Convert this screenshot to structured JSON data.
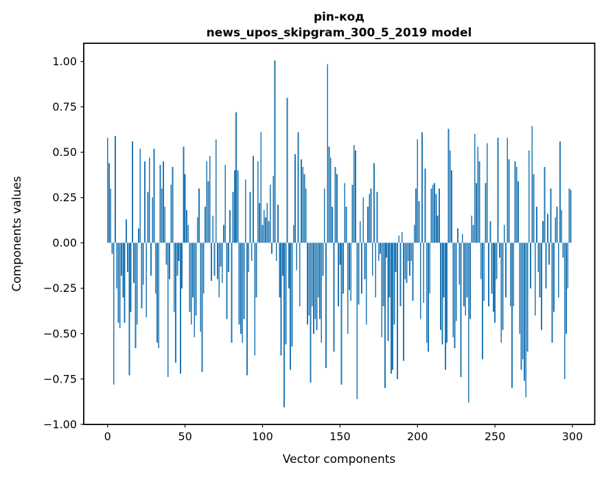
{
  "chart_data": {
    "type": "bar",
    "title": "pin-код",
    "subtitle": "news_upos_skipgram_300_5_2019 model",
    "xlabel": "Vector components",
    "ylabel": "Components values",
    "bar_color": "#1f77b4",
    "n_components": 300,
    "bar_width_units": 0.8,
    "xlim": [
      -15.4,
      314.4
    ],
    "ylim": [
      -1.0005,
      1.1005
    ],
    "grid": false,
    "legend": "none",
    "x_ticks": [
      0,
      50,
      100,
      150,
      200,
      250,
      300
    ],
    "x_tick_labels": [
      "0",
      "50",
      "100",
      "150",
      "200",
      "250",
      "300"
    ],
    "y_ticks": [
      1.0,
      0.75,
      0.5,
      0.25,
      0.0,
      -0.25,
      -0.5,
      -0.75,
      -1.0
    ],
    "y_tick_labels": [
      "1.00",
      "0.75",
      "0.50",
      "0.25",
      "0.00",
      "−0.25",
      "−0.50",
      "−0.75",
      "−1.00"
    ],
    "values": [
      0.58,
      0.44,
      0.3,
      -0.06,
      -0.78,
      0.59,
      -0.25,
      -0.44,
      -0.47,
      -0.18,
      -0.3,
      -0.44,
      0.13,
      -0.16,
      -0.73,
      -0.38,
      0.56,
      -0.22,
      -0.58,
      -0.45,
      0.08,
      0.52,
      -0.36,
      -0.23,
      0.45,
      -0.41,
      0.28,
      0.47,
      -0.18,
      0.25,
      0.52,
      -0.28,
      -0.55,
      -0.58,
      0.43,
      0.3,
      0.45,
      0.2,
      -0.12,
      -0.74,
      -0.2,
      0.32,
      0.42,
      -0.38,
      -0.66,
      -0.18,
      -0.1,
      -0.72,
      -0.25,
      0.53,
      0.38,
      0.18,
      0.1,
      -0.38,
      -0.45,
      -0.3,
      -0.52,
      -0.4,
      0.14,
      0.3,
      -0.49,
      -0.71,
      -0.28,
      0.2,
      0.45,
      0.34,
      0.48,
      -0.21,
      0.15,
      -0.18,
      0.57,
      -0.2,
      -0.3,
      -0.13,
      -0.22,
      0.1,
      0.43,
      -0.42,
      -0.16,
      0.18,
      -0.55,
      0.28,
      0.4,
      0.72,
      0.4,
      -0.45,
      -0.5,
      -0.55,
      -0.42,
      0.35,
      -0.73,
      -0.16,
      0.28,
      -0.1,
      0.48,
      -0.62,
      -0.3,
      0.45,
      0.22,
      0.61,
      0.1,
      0.18,
      0.14,
      0.22,
      0.12,
      0.32,
      -0.06,
      0.37,
      1.005,
      -0.1,
      0.21,
      -0.3,
      -0.62,
      -0.18,
      -0.905,
      -0.56,
      0.8,
      -0.25,
      -0.7,
      -0.57,
      0.1,
      0.49,
      -0.15,
      0.61,
      -0.35,
      0.46,
      0.42,
      0.38,
      0.3,
      -0.45,
      -0.4,
      -0.77,
      -0.35,
      -0.5,
      -0.42,
      -0.48,
      -0.3,
      -0.42,
      -0.55,
      -0.18,
      0.3,
      -0.69,
      0.985,
      0.53,
      0.47,
      0.2,
      -0.6,
      0.42,
      0.38,
      -0.35,
      -0.12,
      -0.78,
      -0.28,
      0.33,
      0.2,
      -0.5,
      -0.26,
      -0.32,
      0.32,
      0.54,
      0.51,
      -0.86,
      -0.34,
      0.12,
      -0.28,
      0.25,
      -0.2,
      -0.45,
      0.2,
      0.27,
      0.3,
      -0.18,
      0.44,
      -0.3,
      0.28,
      -0.1,
      -0.06,
      -0.52,
      -0.35,
      -0.8,
      -0.08,
      -0.54,
      -0.3,
      -0.72,
      -0.7,
      -0.45,
      -0.16,
      -0.75,
      0.04,
      -0.35,
      0.06,
      -0.65,
      -0.2,
      -0.22,
      -0.1,
      -0.18,
      -0.1,
      -0.32,
      0.1,
      0.3,
      0.57,
      0.23,
      -0.42,
      0.61,
      -0.33,
      0.41,
      -0.55,
      -0.6,
      -0.28,
      0.3,
      0.32,
      0.33,
      0.27,
      0.15,
      0.3,
      -0.48,
      -0.56,
      -0.3,
      -0.7,
      -0.55,
      0.63,
      0.51,
      0.4,
      -0.52,
      -0.58,
      -0.43,
      0.08,
      -0.23,
      -0.74,
      0.05,
      -0.35,
      -0.4,
      -0.3,
      -0.88,
      -0.42,
      0.15,
      0.1,
      0.6,
      0.33,
      0.53,
      0.45,
      -0.2,
      -0.64,
      -0.32,
      0.33,
      0.55,
      -0.35,
      0.12,
      -0.28,
      -0.38,
      -0.44,
      -0.2,
      0.58,
      -0.08,
      -0.55,
      -0.48,
      0.1,
      -0.3,
      0.58,
      0.46,
      -0.35,
      -0.8,
      -0.35,
      0.45,
      0.42,
      0.34,
      -0.5,
      -0.7,
      -0.64,
      -0.76,
      -0.85,
      -0.6,
      0.51,
      -0.25,
      0.645,
      0.38,
      -0.4,
      0.2,
      -0.16,
      -0.3,
      -0.48,
      0.12,
      0.42,
      -0.25,
      0.16,
      -0.12,
      0.3,
      -0.55,
      -0.38,
      0.14,
      0.2,
      -0.3,
      0.56,
      0.18,
      -0.08,
      -0.75,
      -0.5,
      -0.25,
      0.3,
      0.29
    ]
  }
}
